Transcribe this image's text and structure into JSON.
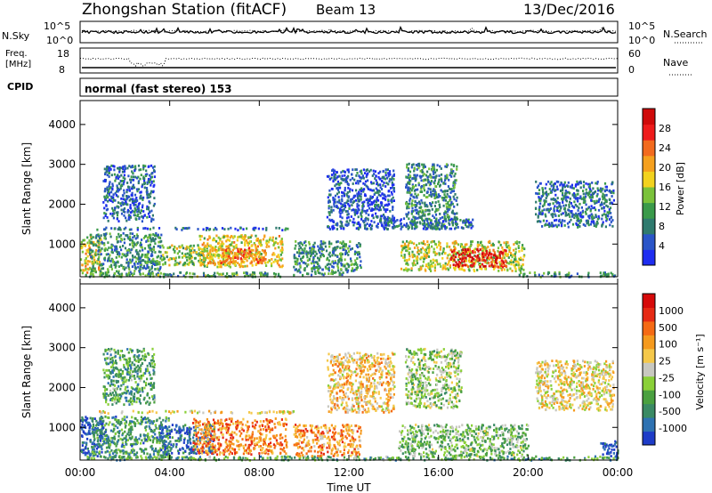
{
  "header": {
    "station": "Zhongshan Station (fitACF)",
    "beam": "Beam 13",
    "date": "13/Dec/2016"
  },
  "noise_panel": {
    "left_label": "N.Sky",
    "right_label": "N.Search",
    "left_ticks": [
      "10^5",
      "10^0"
    ],
    "right_ticks": [
      "10^5",
      "10^0"
    ]
  },
  "freq_panel": {
    "left_label_1": "Freq.",
    "left_label_2": "[MHz]",
    "right_label": "Nave",
    "left_ticks": [
      "18",
      "8"
    ],
    "right_ticks": [
      "60",
      "0"
    ]
  },
  "cpid_panel": {
    "label": "CPID",
    "text": "normal (fast stereo) 153"
  },
  "chart_data": [
    {
      "type": "heatmap",
      "parameter": "power",
      "ylabel": "Slant Range [km]",
      "ylim": [
        180,
        4600
      ],
      "yticks": [
        "1000",
        "2000",
        "3000",
        "4000"
      ],
      "ytick_values": [
        1000,
        2000,
        3000,
        4000
      ],
      "colorbar": {
        "label": "Power [dB]",
        "ticks": [
          "4",
          "8",
          "12",
          "16",
          "20",
          "24",
          "28"
        ],
        "colors": [
          "#1e2df0",
          "#2a55c8",
          "#2f7a6e",
          "#3a9a4a",
          "#7ac23a",
          "#f2d21e",
          "#f5a01e",
          "#f26a1e",
          "#ee1b1b",
          "#cf0a0a"
        ]
      },
      "regions": [
        {
          "t0": 0.0,
          "t1": 0.9,
          "r0": 300,
          "r1": 1200,
          "level": 0.55
        },
        {
          "t0": 0.4,
          "t1": 3.6,
          "r0": 250,
          "r1": 1300,
          "level": 0.3
        },
        {
          "t0": 0.2,
          "t1": 9.0,
          "r0": 200,
          "r1": 320,
          "level": 0.35
        },
        {
          "t0": 0.3,
          "t1": 9.5,
          "r0": 1380,
          "r1": 1440,
          "level": 0.2
        },
        {
          "t0": 1.0,
          "t1": 3.3,
          "r0": 1600,
          "r1": 3000,
          "level": 0.18
        },
        {
          "t0": 3.6,
          "t1": 6.8,
          "r0": 500,
          "r1": 1000,
          "level": 0.45
        },
        {
          "t0": 5.3,
          "t1": 9.0,
          "r0": 450,
          "r1": 1250,
          "level": 0.55
        },
        {
          "t0": 6.2,
          "t1": 8.3,
          "r0": 550,
          "r1": 950,
          "level": 0.7
        },
        {
          "t0": 9.5,
          "t1": 12.5,
          "r0": 250,
          "r1": 1100,
          "level": 0.3
        },
        {
          "t0": 11.0,
          "t1": 14.0,
          "r0": 1400,
          "r1": 2900,
          "level": 0.15
        },
        {
          "t0": 14.3,
          "t1": 19.8,
          "r0": 350,
          "r1": 1100,
          "level": 0.5
        },
        {
          "t0": 16.5,
          "t1": 19.0,
          "r0": 450,
          "r1": 900,
          "level": 0.88
        },
        {
          "t0": 14.5,
          "t1": 16.8,
          "r0": 1400,
          "r1": 3050,
          "level": 0.28
        },
        {
          "t0": 13.5,
          "t1": 17.5,
          "r0": 1400,
          "r1": 1700,
          "level": 0.2
        },
        {
          "t0": 20.3,
          "t1": 23.8,
          "r0": 1450,
          "r1": 2600,
          "level": 0.22
        },
        {
          "t0": 19.5,
          "t1": 23.9,
          "r0": 200,
          "r1": 320,
          "level": 0.3
        }
      ]
    },
    {
      "type": "heatmap",
      "parameter": "velocity",
      "ylabel": "Slant Range [km]",
      "ylim": [
        180,
        4600
      ],
      "yticks": [
        "1000",
        "2000",
        "3000",
        "4000"
      ],
      "ytick_values": [
        1000,
        2000,
        3000,
        4000
      ],
      "xlabel": "Time UT",
      "xticks": [
        "00:00",
        "04:00",
        "08:00",
        "12:00",
        "16:00",
        "20:00",
        "00:00"
      ],
      "xtick_values": [
        0,
        4,
        8,
        12,
        16,
        20,
        24
      ],
      "xlim": [
        0,
        24
      ],
      "colorbar": {
        "label": "Velocity [m s⁻¹]",
        "ticks": [
          "1000",
          "500",
          "100",
          "25",
          "-25",
          "-100",
          "-500",
          "-1000"
        ],
        "colors": [
          "#1e3cc8",
          "#2e72b2",
          "#3a8a64",
          "#4aa040",
          "#8ad038",
          "#c8c8c0",
          "#f5c84a",
          "#f59a1e",
          "#f56a14",
          "#e62a14",
          "#d60a0a"
        ]
      },
      "regions": [
        {
          "t0": 0.0,
          "t1": 1.0,
          "r0": 300,
          "r1": 1300,
          "level": 0.08
        },
        {
          "t0": 0.5,
          "t1": 4.0,
          "r0": 250,
          "r1": 1300,
          "level": 0.25
        },
        {
          "t0": 0.3,
          "t1": 9.5,
          "r0": 1380,
          "r1": 1440,
          "level": 0.55
        },
        {
          "t0": 0.2,
          "t1": 24.0,
          "r0": 200,
          "r1": 300,
          "level": 0.3
        },
        {
          "t0": 1.0,
          "t1": 3.3,
          "r0": 1600,
          "r1": 3000,
          "level": 0.3
        },
        {
          "t0": 3.5,
          "t1": 6.0,
          "r0": 350,
          "r1": 1100,
          "level": 0.12
        },
        {
          "t0": 5.0,
          "t1": 9.2,
          "r0": 350,
          "r1": 1250,
          "level": 0.72
        },
        {
          "t0": 9.5,
          "t1": 12.5,
          "r0": 300,
          "r1": 1100,
          "level": 0.7
        },
        {
          "t0": 11.0,
          "t1": 14.0,
          "r0": 1400,
          "r1": 2900,
          "level": 0.6
        },
        {
          "t0": 14.2,
          "t1": 20.0,
          "r0": 300,
          "r1": 1100,
          "level": 0.38
        },
        {
          "t0": 14.5,
          "t1": 17.0,
          "r0": 1500,
          "r1": 3000,
          "level": 0.42
        },
        {
          "t0": 20.3,
          "t1": 23.8,
          "r0": 1450,
          "r1": 2700,
          "level": 0.55
        },
        {
          "t0": 23.2,
          "t1": 24.0,
          "r0": 300,
          "r1": 700,
          "level": 0.05
        }
      ]
    }
  ]
}
